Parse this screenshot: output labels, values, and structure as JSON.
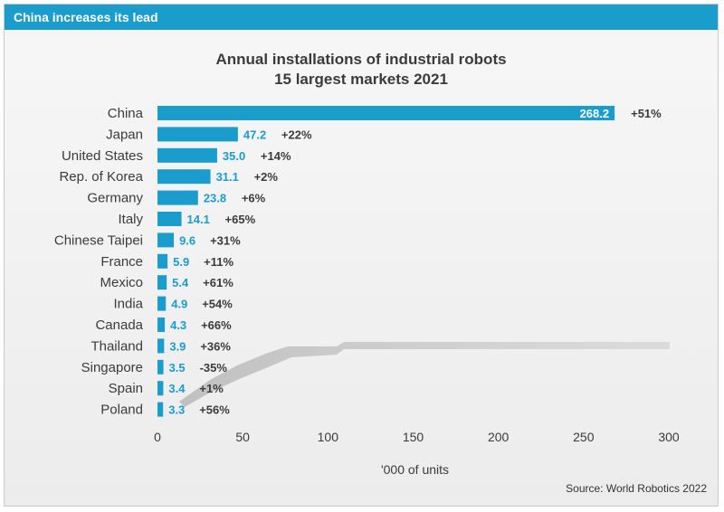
{
  "header": {
    "title": "China increases its lead"
  },
  "source": "Source: World Robotics 2022",
  "colors": {
    "accent": "#1a9ccc",
    "bar": "#1a9ccc",
    "label": "#1a9ccc",
    "growth": "#3b3b3b",
    "text": "#3b3b3b"
  },
  "chart_data": {
    "type": "bar",
    "orientation": "horizontal",
    "title_line1": "Annual installations of industrial robots",
    "title_line2": "15 largest markets 2021",
    "xlabel": "'000 of units",
    "ylabel": "",
    "xlim": [
      0,
      300
    ],
    "xticks": [
      0,
      50,
      100,
      150,
      200,
      250,
      300
    ],
    "grid": false,
    "categories": [
      "China",
      "Japan",
      "United States",
      "Rep. of Korea",
      "Germany",
      "Italy",
      "Chinese Taipei",
      "France",
      "Mexico",
      "India",
      "Canada",
      "Thailand",
      "Singapore",
      "Spain",
      "Poland"
    ],
    "values": [
      268.2,
      47.2,
      35.0,
      31.1,
      23.8,
      14.1,
      9.6,
      5.9,
      5.4,
      4.9,
      4.3,
      3.9,
      3.5,
      3.4,
      3.3
    ],
    "value_labels": [
      "268.2",
      "47.2",
      "35.0",
      "31.1",
      "23.8",
      "14.1",
      "9.6",
      "5.9",
      "5.4",
      "4.9",
      "4.3",
      "3.9",
      "3.5",
      "3.4",
      "3.3"
    ],
    "growth_labels": [
      "+51%",
      "+22%",
      "+14%",
      "+2%",
      "+6%",
      "+65%",
      "+31%",
      "+11%",
      "+61%",
      "+54%",
      "+66%",
      "+36%",
      "-35%",
      "+1%",
      "+56%"
    ]
  }
}
